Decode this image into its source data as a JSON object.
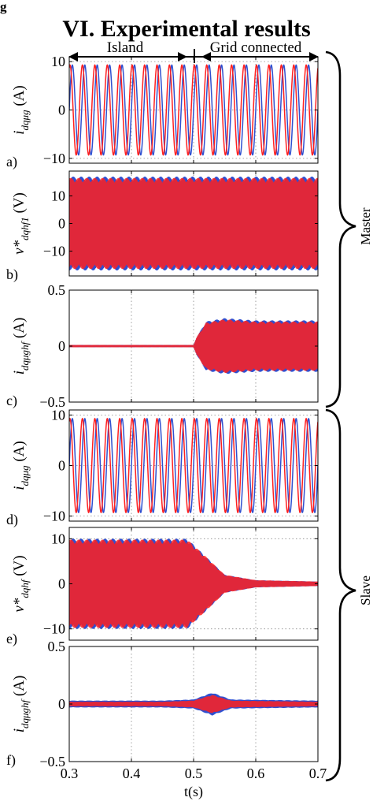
{
  "header": {
    "cut_text": "g",
    "section_title": "VI.  Experimental results"
  },
  "annotations": {
    "island": "Island",
    "grid_connected": "Grid connected",
    "master": "Master",
    "slave": "Slave"
  },
  "colors": {
    "series_blue": "#2f4fd0",
    "series_red": "#ff2020",
    "grid": "#888888"
  },
  "chart_data": [
    {
      "type": "line",
      "panel_label": "a)",
      "ylabel_parts": [
        "i",
        "dqμg",
        " (A)"
      ],
      "yticks": [
        "10",
        "0",
        "−10"
      ],
      "ylim": [
        -11,
        11
      ],
      "xlim": [
        0.3,
        0.7
      ],
      "grid": true,
      "series": [
        {
          "color": "#2f4fd0",
          "shape": "sine",
          "amplitude": 9.3,
          "frequency_hz": 50,
          "phase": 0
        },
        {
          "color": "#ff2020",
          "shape": "sine",
          "amplitude": 9.3,
          "frequency_hz": 50,
          "phase": 1.2
        }
      ]
    },
    {
      "type": "line",
      "panel_label": "b)",
      "ylabel_parts": [
        "v*",
        "dqhf1",
        " (V)"
      ],
      "yticks": [
        "10",
        "0",
        "−10"
      ],
      "ylim": [
        -19,
        19
      ],
      "xlim": [
        0.3,
        0.7
      ],
      "grid": true,
      "series": [
        {
          "color": "#2f4fd0",
          "shape": "envelope",
          "envelope": [
            [
              0.3,
              17
            ],
            [
              0.7,
              17
            ]
          ]
        },
        {
          "color": "#ff2020",
          "shape": "envelope",
          "envelope": [
            [
              0.3,
              16.5
            ],
            [
              0.7,
              16.5
            ]
          ]
        }
      ]
    },
    {
      "type": "line",
      "panel_label": "c)",
      "ylabel_parts": [
        "i",
        "dqμghf",
        " (A)"
      ],
      "yticks": [
        "0.5",
        "0",
        "−0.5"
      ],
      "ylim": [
        -0.5,
        0.5
      ],
      "xlim": [
        0.3,
        0.7
      ],
      "grid": true,
      "series": [
        {
          "color": "#2f4fd0",
          "shape": "envelope",
          "envelope": [
            [
              0.3,
              0.01
            ],
            [
              0.5,
              0.01
            ],
            [
              0.505,
              0.08
            ],
            [
              0.52,
              0.22
            ],
            [
              0.55,
              0.25
            ],
            [
              0.6,
              0.23
            ],
            [
              0.7,
              0.23
            ]
          ]
        },
        {
          "color": "#ff2020",
          "shape": "envelope",
          "envelope": [
            [
              0.3,
              0.01
            ],
            [
              0.5,
              0.01
            ],
            [
              0.505,
              0.08
            ],
            [
              0.52,
              0.21
            ],
            [
              0.55,
              0.24
            ],
            [
              0.6,
              0.22
            ],
            [
              0.7,
              0.22
            ]
          ]
        }
      ]
    },
    {
      "type": "line",
      "panel_label": "d)",
      "ylabel_parts": [
        "i",
        "dqμg",
        " (A)"
      ],
      "yticks": [
        "10",
        "0",
        "−10"
      ],
      "ylim": [
        -11,
        11
      ],
      "xlim": [
        0.3,
        0.7
      ],
      "grid": true,
      "series": [
        {
          "color": "#2f4fd0",
          "shape": "sine",
          "amplitude": 9.3,
          "frequency_hz": 50,
          "phase": 0
        },
        {
          "color": "#ff2020",
          "shape": "sine",
          "amplitude": 9.3,
          "frequency_hz": 50,
          "phase": 1.2
        }
      ]
    },
    {
      "type": "line",
      "panel_label": "e)",
      "ylabel_parts": [
        "v*",
        "dqhf",
        " (V)"
      ],
      "yticks": [
        "10",
        "0",
        "−10"
      ],
      "ylim": [
        -12.5,
        12.5
      ],
      "xlim": [
        0.3,
        0.7
      ],
      "grid": true,
      "series": [
        {
          "color": "#2f4fd0",
          "shape": "envelope",
          "envelope": [
            [
              0.3,
              10
            ],
            [
              0.49,
              10
            ],
            [
              0.52,
              6
            ],
            [
              0.55,
              2
            ],
            [
              0.6,
              0.8
            ],
            [
              0.7,
              0.5
            ]
          ]
        },
        {
          "color": "#ff2020",
          "shape": "envelope",
          "envelope": [
            [
              0.3,
              9.8
            ],
            [
              0.49,
              9.8
            ],
            [
              0.52,
              6
            ],
            [
              0.55,
              2
            ],
            [
              0.6,
              0.8
            ],
            [
              0.7,
              0.5
            ]
          ]
        }
      ]
    },
    {
      "type": "line",
      "panel_label": "f)",
      "ylabel_parts": [
        "i",
        "dqμghf",
        " (A)"
      ],
      "yticks": [
        "0.5",
        "0",
        "−0.5"
      ],
      "xticks": [
        "0.3",
        "0.4",
        "0.5",
        "0.6",
        "0.7"
      ],
      "xlabel": "t(s)",
      "ylim": [
        -0.5,
        0.5
      ],
      "xlim": [
        0.3,
        0.7
      ],
      "grid": true,
      "series": [
        {
          "color": "#2f4fd0",
          "shape": "envelope",
          "envelope": [
            [
              0.3,
              0.03
            ],
            [
              0.45,
              0.03
            ],
            [
              0.5,
              0.04
            ],
            [
              0.53,
              0.1
            ],
            [
              0.56,
              0.04
            ],
            [
              0.7,
              0.03
            ]
          ]
        },
        {
          "color": "#ff2020",
          "shape": "envelope",
          "envelope": [
            [
              0.3,
              0.02
            ],
            [
              0.45,
              0.02
            ],
            [
              0.5,
              0.03
            ],
            [
              0.53,
              0.08
            ],
            [
              0.56,
              0.03
            ],
            [
              0.7,
              0.02
            ]
          ]
        }
      ]
    }
  ]
}
